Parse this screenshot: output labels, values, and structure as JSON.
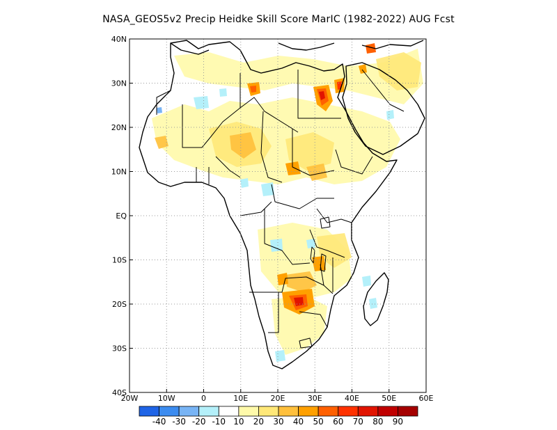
{
  "title": "NASA_GEOS5v2 Precip Heidke Skill Score MarIC (1982-2022) AUG Fcst",
  "map": {
    "lat_ticks": [
      "40N",
      "30N",
      "20N",
      "10N",
      "EQ",
      "10S",
      "20S",
      "30S",
      "40S"
    ],
    "lon_ticks": [
      "20W",
      "10W",
      "0",
      "10E",
      "20E",
      "30E",
      "40E",
      "50E",
      "60E"
    ],
    "lon_range": [
      -20,
      60
    ],
    "lat_range": [
      -40,
      40
    ],
    "grid": "dotted"
  },
  "colorbar": {
    "labels": [
      "-40",
      "-30",
      "-20",
      "-10",
      "10",
      "20",
      "30",
      "40",
      "50",
      "60",
      "70",
      "80",
      "90"
    ],
    "colors": [
      "#1f64e6",
      "#3c8cf0",
      "#78b4f5",
      "#b4f0fa",
      "#ffffff",
      "#fffaaa",
      "#ffe878",
      "#ffc03c",
      "#ffa000",
      "#ff6000",
      "#ff3200",
      "#e11400",
      "#c00000",
      "#a50000"
    ]
  },
  "colors": {
    "coast": "#000000",
    "frame": "#000000",
    "grid": "#999999"
  }
}
